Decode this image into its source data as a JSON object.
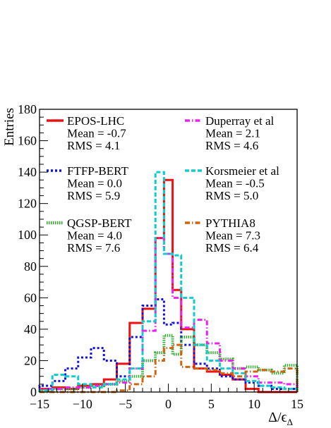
{
  "chart_data": {
    "type": "line",
    "step": true,
    "title": "",
    "xlabel": "Δ/ϵ_Δ",
    "xlabel_main": "Δ/ϵ",
    "xlabel_sub": "Δ",
    "ylabel": "Entries",
    "xlim": [
      -15,
      15
    ],
    "ylim": [
      0,
      180
    ],
    "x_ticks": [
      -15,
      -10,
      -5,
      0,
      5,
      10,
      15
    ],
    "y_ticks": [
      0,
      20,
      40,
      60,
      80,
      100,
      120,
      140,
      160,
      180
    ],
    "bin_edges": [
      -15,
      -13.5,
      -12,
      -10.5,
      -9,
      -7.5,
      -6,
      -4.5,
      -3,
      -1.5,
      -0.5,
      0.5,
      1.5,
      3,
      4.5,
      6,
      7.5,
      9,
      10.5,
      12,
      13.5,
      15
    ],
    "grid": false,
    "legend_position": "top",
    "series": [
      {
        "name": "EPOS-LHC",
        "mean": "Mean = -0.7",
        "rms": "RMS = 4.1",
        "color": "#ee1111",
        "dash": "",
        "width": 3,
        "values": [
          2,
          3,
          2,
          4,
          5,
          8,
          18,
          44,
          53,
          98,
          135,
          65,
          40,
          15,
          13,
          11,
          8,
          2,
          0,
          0,
          0
        ]
      },
      {
        "name": "FTFP-BERT",
        "mean": "Mean = 0.0",
        "rms": "RMS = 5.9",
        "color": "#1111dd",
        "dash": "3,3",
        "width": 3,
        "values": [
          4,
          7,
          15,
          22,
          28,
          20,
          10,
          35,
          55,
          59,
          43,
          44,
          30,
          18,
          15,
          10,
          8,
          6,
          4,
          2,
          2
        ]
      },
      {
        "name": "QGSP-BERT",
        "mean": "Mean = 4.0",
        "rms": "RMS = 7.6",
        "color": "#33aa33",
        "dash": "1.5,1.5",
        "width": 4,
        "values": [
          1,
          2,
          2,
          3,
          4,
          5,
          7,
          10,
          20,
          25,
          36,
          24,
          35,
          30,
          25,
          21,
          15,
          16,
          14,
          12,
          17
        ]
      },
      {
        "name": "Duperray et al",
        "mean": "Mean = 2.1",
        "rms": "RMS = 4.6",
        "color": "#ee22ee",
        "dash": "7,3,1.5,3",
        "width": 3,
        "values": [
          2,
          2,
          3,
          3,
          4,
          5,
          6,
          15,
          39,
          98,
          88,
          60,
          41,
          46,
          31,
          20,
          15,
          10,
          6,
          6,
          5
        ]
      },
      {
        "name": "Korsmeier et al",
        "mean": "Mean = -0.5",
        "rms": "RMS = 5.0",
        "color": "#11cccc",
        "dash": "6,3",
        "width": 3,
        "values": [
          1,
          11,
          10,
          5,
          3,
          5,
          8,
          15,
          45,
          140,
          88,
          87,
          60,
          30,
          20,
          15,
          12,
          7,
          4,
          3,
          2
        ]
      },
      {
        "name": "PYTHIA8",
        "mean": "Mean = 7.3",
        "rms": "RMS = 6.4",
        "color": "#cc6611",
        "dash": "7,3,1.5,3",
        "width": 3,
        "values": [
          0,
          0,
          0,
          0,
          0,
          0,
          1,
          5,
          10,
          20,
          28,
          30,
          16,
          15,
          14,
          12,
          10,
          13,
          14,
          13,
          15
        ]
      }
    ]
  }
}
